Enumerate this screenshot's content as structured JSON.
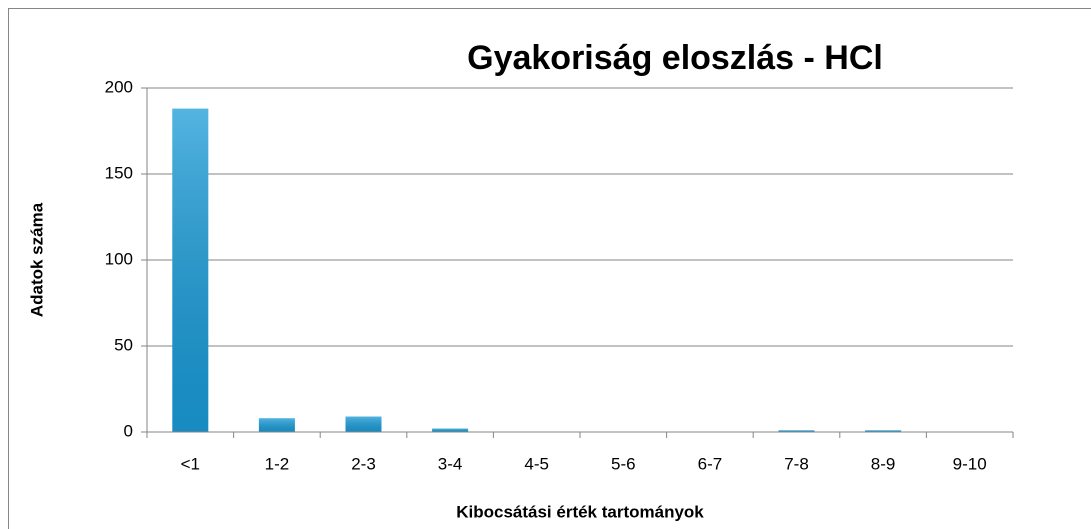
{
  "chart_data": {
    "type": "bar",
    "title": "Gyakoriság eloszlás - HCl",
    "x_label": "Kibocsátási érték tartományok",
    "y_label": "Adatok száma",
    "categories": [
      "<1",
      "1-2",
      "2-3",
      "3-4",
      "4-5",
      "5-6",
      "6-7",
      "7-8",
      "8-9",
      "9-10"
    ],
    "values": [
      188,
      8,
      9,
      2,
      0,
      0,
      0,
      1,
      1,
      0
    ],
    "color": "#1a9bd7",
    "ylim": [
      0,
      200
    ],
    "yticks": [
      0,
      50,
      100,
      150,
      200
    ],
    "grid": true
  }
}
